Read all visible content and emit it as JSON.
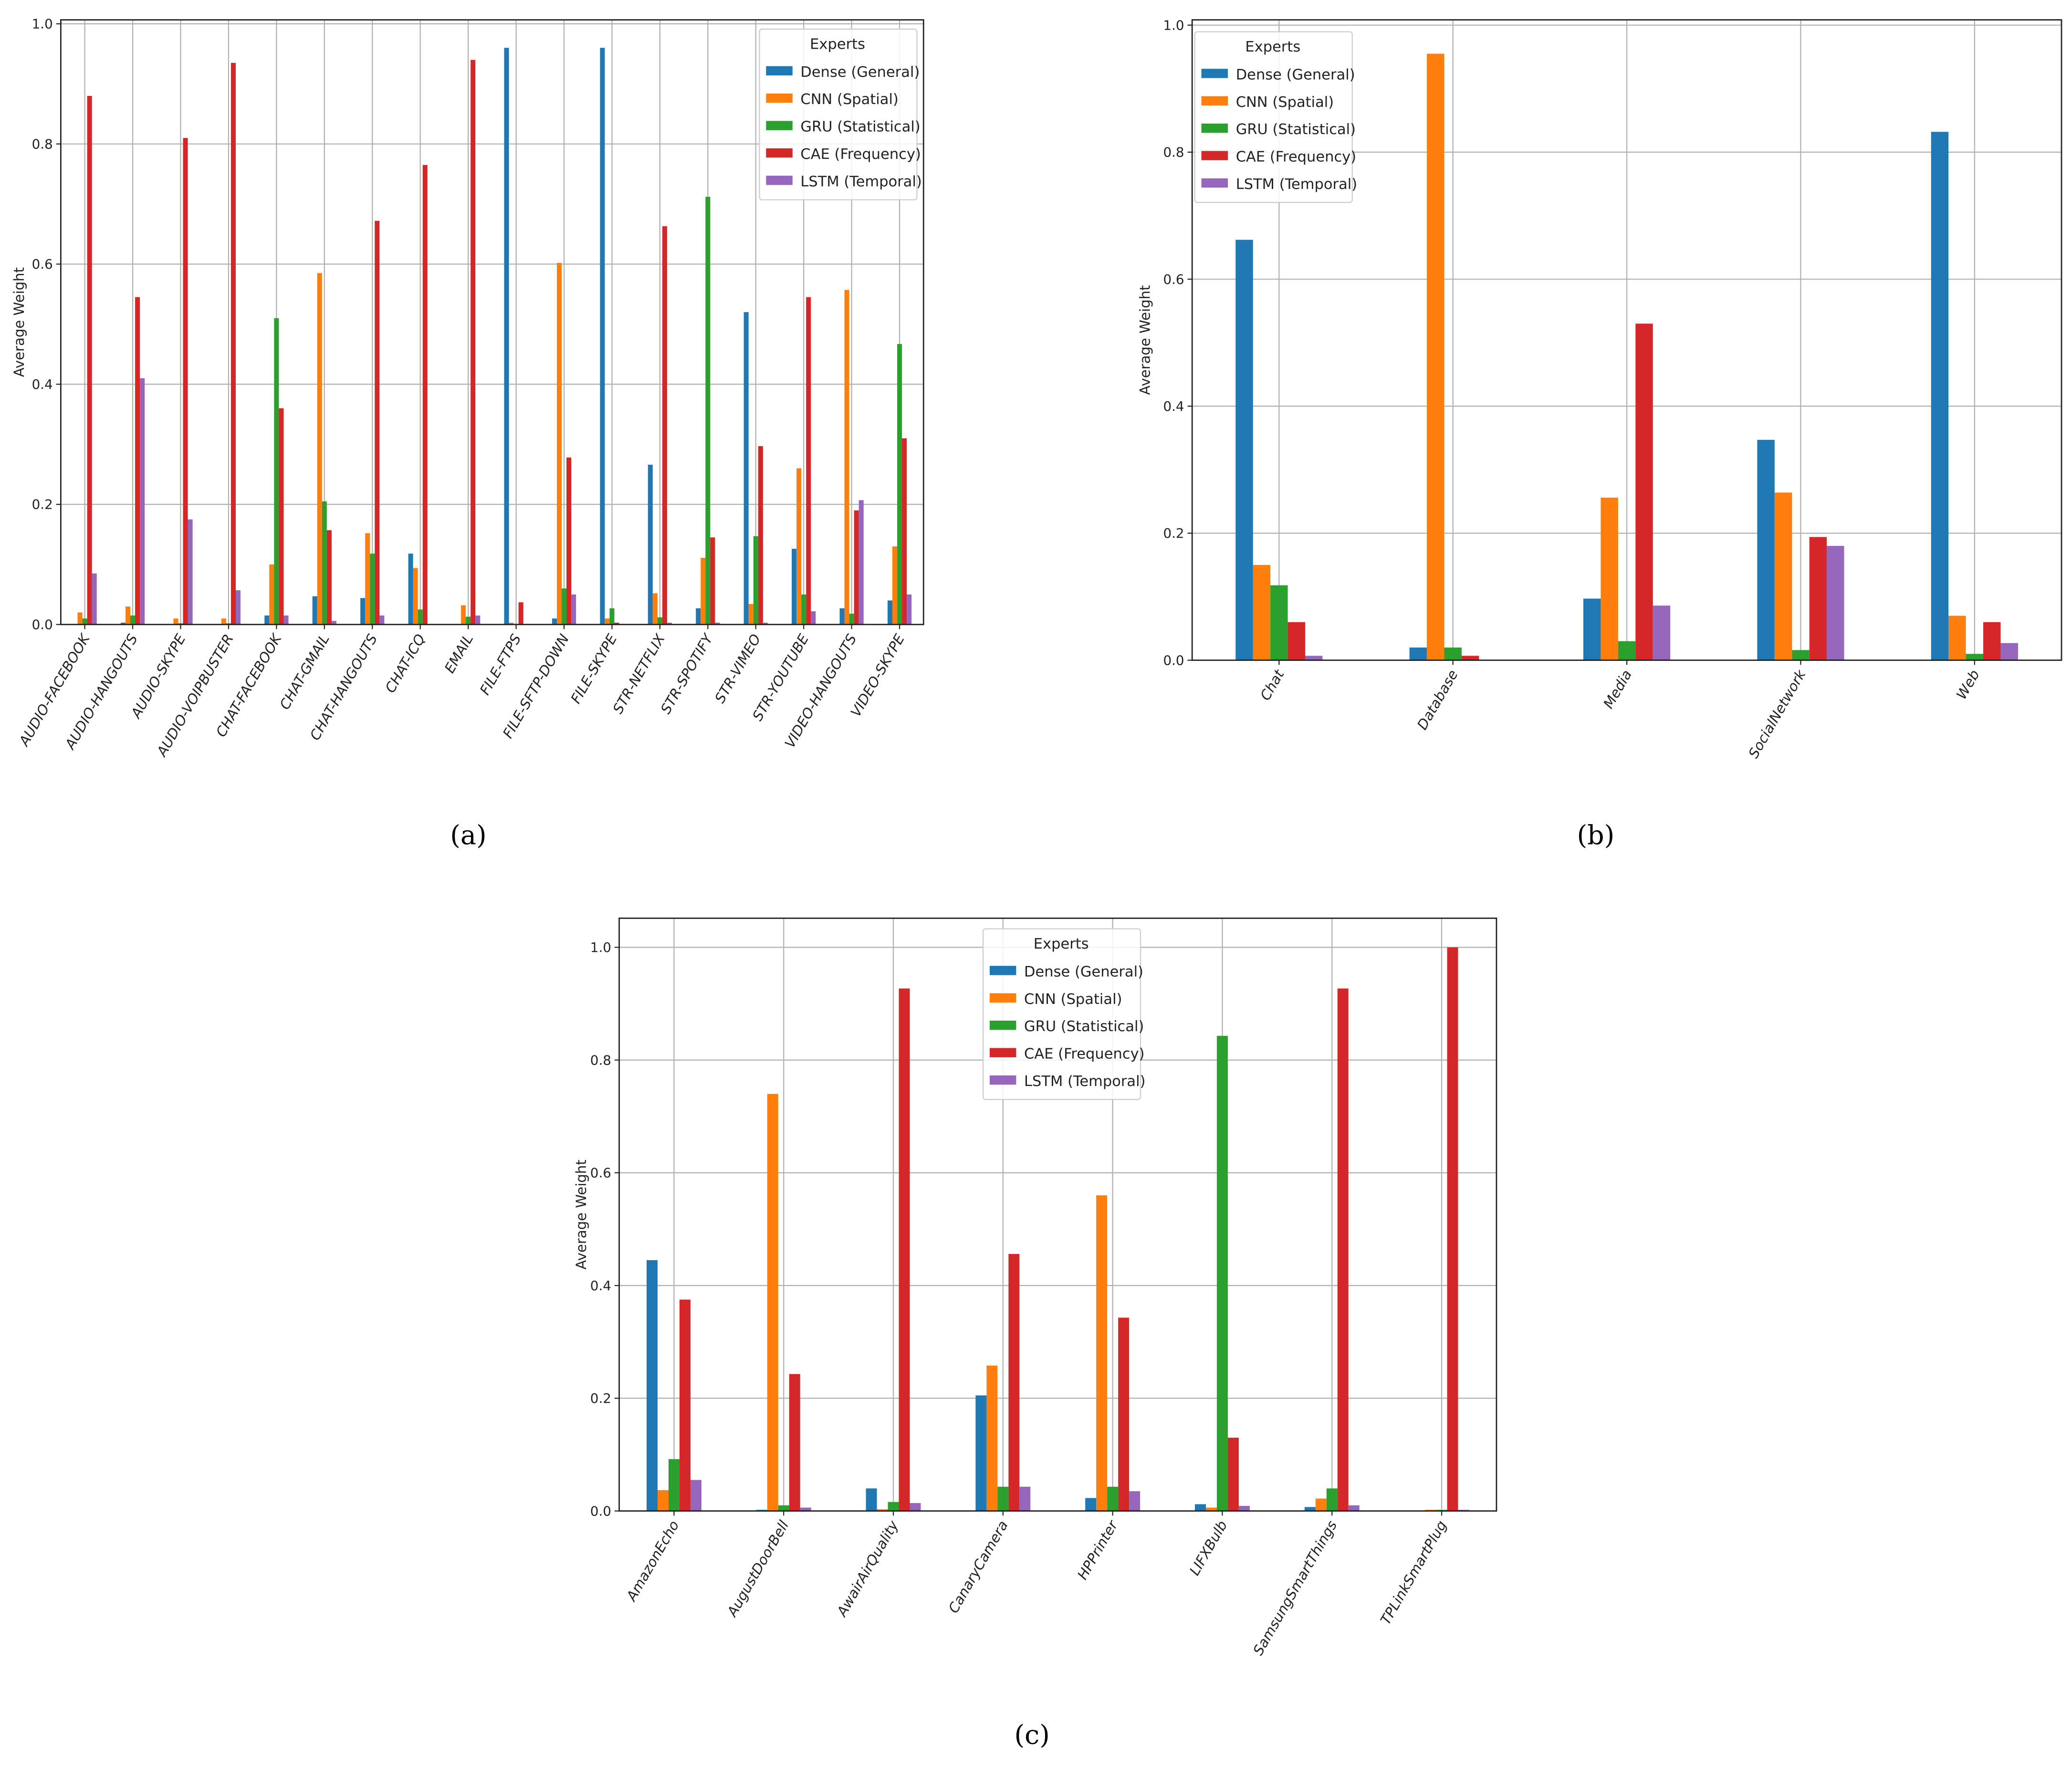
{
  "colors": {
    "Dense (General)": "#1f77b4",
    "CNN (Spatial)": "#ff7f0e",
    "GRU (Statistical)": "#2ca02c",
    "CAE (Frequency)": "#d62728",
    "LSTM (Temporal)": "#9467bd"
  },
  "chart_data": [
    {
      "type": "bar",
      "caption": "(a)",
      "title": "",
      "xlabel": "",
      "ylabel": "Average Weight",
      "ylim": [
        0,
        1.0
      ],
      "yticks": [
        "0.0",
        "0.2",
        "0.4",
        "0.6",
        "0.8",
        "1.0"
      ],
      "grid": true,
      "legend_title": "Experts",
      "legend_placement": "top-right",
      "categories": [
        "AUDIO-FACEBOOK",
        "AUDIO-HANGOUTS",
        "AUDIO-SKYPE",
        "AUDIO-VOIPBUSTER",
        "CHAT-FACEBOOK",
        "CHAT-GMAIL",
        "CHAT-HANGOUTS",
        "CHAT-ICQ",
        "EMAIL",
        "FILE-FTPS",
        "FILE-SFTP-DOWN",
        "FILE-SKYPE",
        "STR-NETFLIX",
        "STR-SPOTIFY",
        "STR-VIMEO",
        "STR-YOUTUBE",
        "VIDEO-HANGOUTS",
        "VIDEO-SKYPE"
      ],
      "series": [
        {
          "name": "Dense (General)",
          "values": [
            0,
            0.003,
            0,
            0,
            0.015,
            0.047,
            0.044,
            0.118,
            0,
            0.96,
            0.01,
            0.96,
            0.266,
            0.027,
            0.52,
            0.126,
            0.027,
            0.04
          ]
        },
        {
          "name": "CNN (Spatial)",
          "values": [
            0.02,
            0.03,
            0.01,
            0.01,
            0.1,
            0.585,
            0.152,
            0.094,
            0.032,
            0.003,
            0.602,
            0.01,
            0.052,
            0.111,
            0.034,
            0.26,
            0.557,
            0.13
          ]
        },
        {
          "name": "GRU (Statistical)",
          "values": [
            0.01,
            0.015,
            0.002,
            0.002,
            0.51,
            0.205,
            0.118,
            0.025,
            0.013,
            0,
            0.06,
            0.027,
            0.012,
            0.712,
            0.147,
            0.05,
            0.018,
            0.467
          ]
        },
        {
          "name": "CAE (Frequency)",
          "values": [
            0.88,
            0.545,
            0.81,
            0.935,
            0.36,
            0.157,
            0.672,
            0.765,
            0.94,
            0.037,
            0.278,
            0.003,
            0.663,
            0.145,
            0.297,
            0.545,
            0.19,
            0.31
          ]
        },
        {
          "name": "LSTM (Temporal)",
          "values": [
            0.085,
            0.41,
            0.175,
            0.057,
            0.015,
            0.006,
            0.015,
            0,
            0.015,
            0,
            0.05,
            0,
            0.003,
            0.003,
            0.003,
            0.022,
            0.207,
            0.05
          ]
        }
      ]
    },
    {
      "type": "bar",
      "caption": "(b)",
      "title": "",
      "xlabel": "",
      "ylabel": "Average Weight",
      "ylim": [
        0,
        1.0
      ],
      "yticks": [
        "0.0",
        "0.2",
        "0.4",
        "0.6",
        "0.8",
        "1.0"
      ],
      "grid": true,
      "legend_title": "Experts",
      "legend_placement": "top-left",
      "categories": [
        "Chat",
        "Database",
        "Media",
        "SocialNetwork",
        "Web"
      ],
      "series": [
        {
          "name": "Dense (General)",
          "values": [
            0.662,
            0.02,
            0.097,
            0.347,
            0.832
          ]
        },
        {
          "name": "CNN (Spatial)",
          "values": [
            0.15,
            0.955,
            0.256,
            0.264,
            0.07
          ]
        },
        {
          "name": "GRU (Statistical)",
          "values": [
            0.118,
            0.02,
            0.03,
            0.016,
            0.01
          ]
        },
        {
          "name": "CAE (Frequency)",
          "values": [
            0.06,
            0.007,
            0.53,
            0.194,
            0.06
          ]
        },
        {
          "name": "LSTM (Temporal)",
          "values": [
            0.007,
            0,
            0.086,
            0.18,
            0.027
          ]
        }
      ]
    },
    {
      "type": "bar",
      "caption": "(c)",
      "title": "",
      "xlabel": "",
      "ylabel": "Average Weight",
      "ylim": [
        0,
        1.0
      ],
      "yticks": [
        "0.0",
        "0.2",
        "0.4",
        "0.6",
        "0.8",
        "1.0"
      ],
      "grid": true,
      "legend_title": "Experts",
      "legend_placement": "top-center",
      "categories": [
        "AmazonEcho",
        "AugustDoorBell",
        "AwairAirQuality",
        "CanaryCamera",
        "HPPrinter",
        "LIFXBulb",
        "SamsungSmartThings",
        "TPLinkSmartPlug"
      ],
      "series": [
        {
          "name": "Dense (General)",
          "values": [
            0.445,
            0.002,
            0.04,
            0.205,
            0.023,
            0.012,
            0.007,
            0
          ]
        },
        {
          "name": "CNN (Spatial)",
          "values": [
            0.037,
            0.74,
            0.003,
            0.258,
            0.56,
            0.006,
            0.022,
            0.002
          ]
        },
        {
          "name": "GRU (Statistical)",
          "values": [
            0.092,
            0.01,
            0.016,
            0.043,
            0.043,
            0.843,
            0.04,
            0.002
          ]
        },
        {
          "name": "CAE (Frequency)",
          "values": [
            0.375,
            0.243,
            0.927,
            0.456,
            0.343,
            0.13,
            0.927,
            1.0
          ]
        },
        {
          "name": "LSTM (Temporal)",
          "values": [
            0.055,
            0.006,
            0.014,
            0.043,
            0.035,
            0.009,
            0.01,
            0.002
          ]
        }
      ]
    }
  ]
}
